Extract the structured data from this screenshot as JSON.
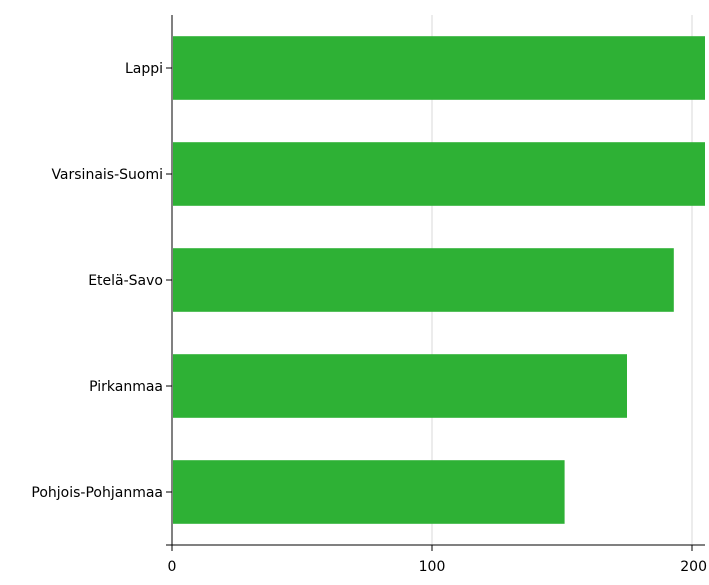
{
  "chart_data": {
    "type": "bar",
    "orientation": "horizontal",
    "categories": [
      "Lappi",
      "Varsinais-Suomi",
      "Etelä-Savo",
      "Pirkanmaa",
      "Pohjois-Pohjanmaa"
    ],
    "values": [
      205,
      205,
      193,
      175,
      151
    ],
    "xlim": [
      0,
      205
    ],
    "xticks": [
      0,
      100,
      200
    ],
    "xtick_labels": [
      "0",
      "100",
      "200"
    ],
    "grid": "vertical",
    "bar_color": "#2eb135",
    "title": "",
    "xlabel": "",
    "ylabel": ""
  }
}
